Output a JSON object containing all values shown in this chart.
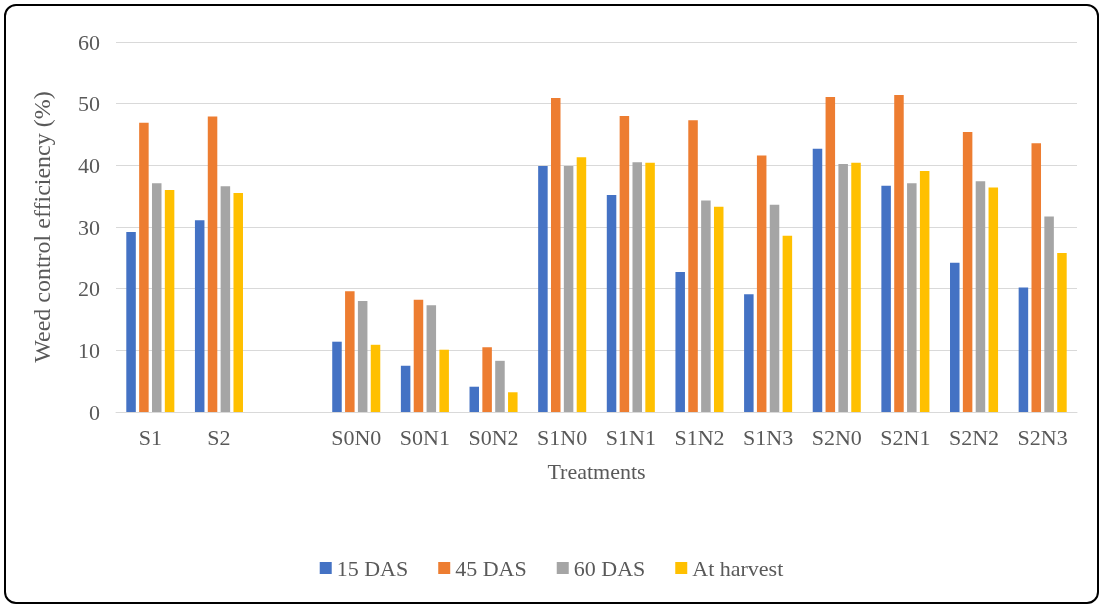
{
  "chart_data": {
    "type": "bar",
    "xlabel": "Treatments",
    "ylabel": "Weed control efficiency (%)",
    "categories": [
      "S1",
      "S2",
      null,
      "S0N0",
      "S0N1",
      "S0N2",
      "S1N0",
      "S1N1",
      "S1N2",
      "S1N3",
      "S2N0",
      "S2N1",
      "S2N2",
      "S2N3"
    ],
    "series": [
      {
        "name": "15 DAS",
        "color": "#4472c4",
        "values": [
          29.2,
          31.1,
          null,
          11.4,
          7.5,
          4.1,
          39.9,
          35.2,
          22.7,
          19.1,
          42.7,
          36.7,
          24.2,
          20.2
        ]
      },
      {
        "name": "45 DAS",
        "color": "#ed7d31",
        "values": [
          46.9,
          47.9,
          null,
          19.6,
          18.2,
          10.5,
          50.9,
          48.0,
          47.3,
          41.6,
          51.1,
          51.4,
          45.4,
          43.6
        ]
      },
      {
        "name": "60 DAS",
        "color": "#a5a5a5",
        "values": [
          37.1,
          36.6,
          null,
          18.0,
          17.3,
          8.3,
          39.9,
          40.5,
          34.3,
          33.6,
          40.2,
          37.1,
          37.4,
          31.7
        ]
      },
      {
        "name": "At harvest",
        "color": "#ffc000",
        "values": [
          36.0,
          35.5,
          null,
          10.9,
          10.1,
          3.2,
          41.3,
          40.4,
          33.3,
          28.6,
          40.4,
          39.1,
          36.4,
          25.8
        ]
      }
    ],
    "ylim": [
      0,
      60
    ],
    "yticks": [
      0,
      10,
      20,
      30,
      40,
      50,
      60
    ],
    "grid": "y",
    "legend": "bottom"
  }
}
